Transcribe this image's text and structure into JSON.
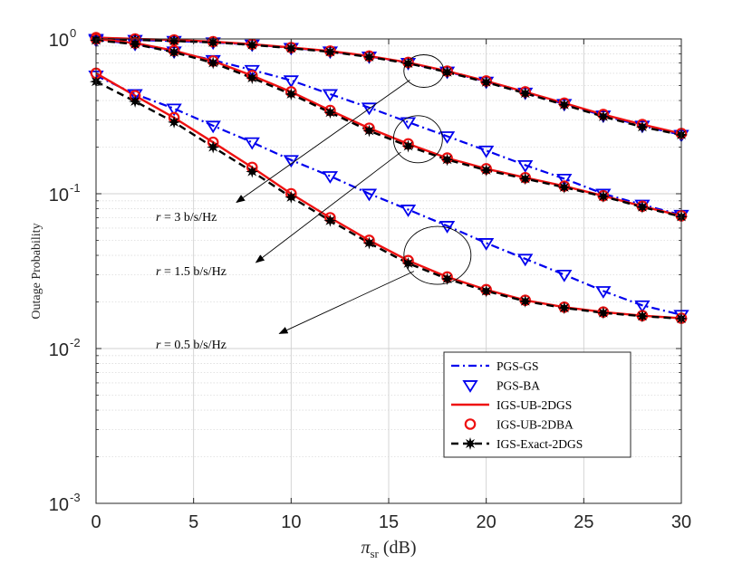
{
  "chart_data": {
    "type": "line",
    "title": "",
    "xlabel_main": "π",
    "xlabel_sub": "sr",
    "xlabel_unit": "(dB)",
    "ylabel": "Outage Probability",
    "xlim": [
      0,
      30
    ],
    "ylim_log10": [
      -3,
      0
    ],
    "yscale": "log",
    "grid": true,
    "x_ticks": [
      "0",
      "5",
      "10",
      "15",
      "20",
      "25",
      "30"
    ],
    "y_ticks": [
      {
        "base": "10",
        "exp": "-3"
      },
      {
        "base": "10",
        "exp": "-2"
      },
      {
        "base": "10",
        "exp": "-1"
      },
      {
        "base": "10",
        "exp": "0"
      }
    ],
    "x": [
      0,
      2,
      4,
      6,
      8,
      10,
      12,
      14,
      16,
      18,
      20,
      22,
      24,
      26,
      28,
      30
    ],
    "legend_position": "lower-right",
    "legend": [
      "PGS-GS",
      "PGS-BA",
      "IGS-UB-2DGS",
      "IGS-UB-2DBA",
      "IGS-Exact-2DGS"
    ],
    "series": [
      {
        "name": "PGS-GS",
        "rate": "3",
        "style": "dashdot",
        "marker": "none",
        "color": "#0000ee",
        "values": [
          1.0,
          0.985,
          0.97,
          0.95,
          0.92,
          0.875,
          0.83,
          0.77,
          0.7,
          0.615,
          0.53,
          0.45,
          0.38,
          0.32,
          0.275,
          0.24
        ]
      },
      {
        "name": "PGS-BA",
        "rate": "3",
        "style": "none",
        "marker": "triangle-down",
        "color": "#0000ee",
        "values": [
          1.0,
          0.985,
          0.97,
          0.95,
          0.92,
          0.875,
          0.83,
          0.77,
          0.7,
          0.615,
          0.53,
          0.45,
          0.38,
          0.32,
          0.275,
          0.24
        ]
      },
      {
        "name": "IGS-UB-2DGS",
        "rate": "3",
        "style": "solid",
        "marker": "none",
        "color": "#ee1111",
        "values": [
          1.02,
          1.0,
          0.985,
          0.96,
          0.925,
          0.88,
          0.835,
          0.775,
          0.705,
          0.62,
          0.535,
          0.455,
          0.385,
          0.325,
          0.28,
          0.245
        ]
      },
      {
        "name": "IGS-UB-2DBA",
        "rate": "3",
        "style": "none",
        "marker": "circle",
        "color": "#ee1111",
        "values": [
          1.02,
          1.0,
          0.985,
          0.96,
          0.925,
          0.88,
          0.835,
          0.775,
          0.705,
          0.62,
          0.535,
          0.455,
          0.385,
          0.325,
          0.28,
          0.245
        ]
      },
      {
        "name": "IGS-Exact-2DGS",
        "rate": "3",
        "style": "dashed",
        "marker": "star",
        "color": "#000000",
        "values": [
          1.0,
          0.985,
          0.97,
          0.95,
          0.915,
          0.87,
          0.825,
          0.765,
          0.695,
          0.61,
          0.525,
          0.445,
          0.375,
          0.315,
          0.27,
          0.24
        ]
      },
      {
        "name": "PGS-GS",
        "rate": "1.5",
        "style": "dashdot",
        "marker": "none",
        "color": "#0000ee",
        "values": [
          0.985,
          0.93,
          0.83,
          0.73,
          0.63,
          0.54,
          0.44,
          0.36,
          0.29,
          0.235,
          0.19,
          0.153,
          0.125,
          0.1,
          0.085,
          0.073
        ]
      },
      {
        "name": "PGS-BA",
        "rate": "1.5",
        "style": "none",
        "marker": "triangle-down",
        "color": "#0000ee",
        "values": [
          0.985,
          0.93,
          0.83,
          0.73,
          0.63,
          0.54,
          0.44,
          0.36,
          0.29,
          0.235,
          0.19,
          0.153,
          0.125,
          0.1,
          0.085,
          0.073
        ]
      },
      {
        "name": "IGS-UB-2DGS",
        "rate": "1.5",
        "style": "solid",
        "marker": "none",
        "color": "#ee1111",
        "values": [
          1.0,
          0.94,
          0.84,
          0.72,
          0.58,
          0.455,
          0.345,
          0.265,
          0.21,
          0.17,
          0.145,
          0.127,
          0.112,
          0.097,
          0.083,
          0.072
        ]
      },
      {
        "name": "IGS-UB-2DBA",
        "rate": "1.5",
        "style": "none",
        "marker": "circle",
        "color": "#ee1111",
        "values": [
          1.0,
          0.94,
          0.84,
          0.72,
          0.58,
          0.455,
          0.345,
          0.265,
          0.21,
          0.17,
          0.145,
          0.127,
          0.112,
          0.097,
          0.083,
          0.072
        ]
      },
      {
        "name": "IGS-Exact-2DGS",
        "rate": "1.5",
        "style": "dashed",
        "marker": "star",
        "color": "#000000",
        "values": [
          0.98,
          0.925,
          0.82,
          0.7,
          0.56,
          0.44,
          0.335,
          0.255,
          0.203,
          0.166,
          0.142,
          0.125,
          0.11,
          0.096,
          0.082,
          0.071
        ]
      },
      {
        "name": "PGS-GS",
        "rate": "0.5",
        "style": "dashdot",
        "marker": "none",
        "color": "#0000ee",
        "values": [
          0.58,
          0.44,
          0.355,
          0.275,
          0.215,
          0.165,
          0.13,
          0.1,
          0.079,
          0.062,
          0.048,
          0.038,
          0.03,
          0.0235,
          0.019,
          0.0165
        ]
      },
      {
        "name": "PGS-BA",
        "rate": "0.5",
        "style": "none",
        "marker": "triangle-down",
        "color": "#0000ee",
        "values": [
          0.58,
          0.44,
          0.355,
          0.275,
          0.215,
          0.165,
          0.13,
          0.1,
          0.079,
          0.062,
          0.048,
          0.038,
          0.03,
          0.0235,
          0.019,
          0.0165
        ]
      },
      {
        "name": "IGS-UB-2DGS",
        "rate": "0.5",
        "style": "solid",
        "marker": "none",
        "color": "#ee1111",
        "values": [
          0.6,
          0.43,
          0.31,
          0.215,
          0.148,
          0.1,
          0.07,
          0.05,
          0.037,
          0.029,
          0.024,
          0.0205,
          0.0185,
          0.0172,
          0.0163,
          0.0157
        ]
      },
      {
        "name": "IGS-UB-2DBA",
        "rate": "0.5",
        "style": "none",
        "marker": "circle",
        "color": "#ee1111",
        "values": [
          0.6,
          0.43,
          0.31,
          0.215,
          0.148,
          0.1,
          0.07,
          0.05,
          0.037,
          0.029,
          0.024,
          0.0205,
          0.0185,
          0.0172,
          0.0163,
          0.0157
        ]
      },
      {
        "name": "IGS-Exact-2DGS",
        "rate": "0.5",
        "style": "dashed",
        "marker": "star",
        "color": "#000000",
        "values": [
          0.53,
          0.395,
          0.29,
          0.2,
          0.139,
          0.095,
          0.067,
          0.048,
          0.0355,
          0.0282,
          0.0235,
          0.0202,
          0.0183,
          0.017,
          0.0162,
          0.0156
        ]
      }
    ],
    "annotations": [
      {
        "label_prefix": "r",
        "label_rest": " = 3 b/s/Hz",
        "ellipse_center": [
          16.8,
          0.62
        ],
        "arrow_to": [
          7.2,
          0.088
        ]
      },
      {
        "label_prefix": "r",
        "label_rest": " = 1.5 b/s/Hz",
        "ellipse_center": [
          16.5,
          0.225
        ],
        "arrow_to": [
          8.2,
          0.036
        ]
      },
      {
        "label_prefix": "r",
        "label_rest": " = 0.5 b/s/Hz",
        "ellipse_center": [
          17.5,
          0.04
        ],
        "arrow_to": [
          9.4,
          0.0125
        ]
      }
    ]
  }
}
